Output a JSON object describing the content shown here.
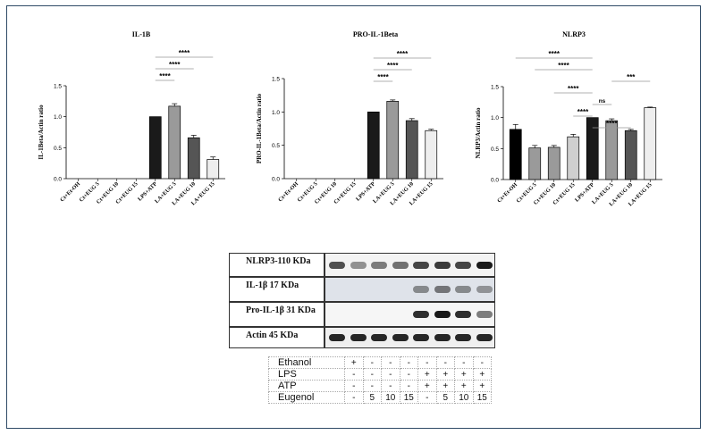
{
  "chart_data": [
    {
      "type": "bar",
      "title": "IL-1B",
      "ylabel": "IL-1Beta/Actin ratio",
      "xlabel": "",
      "ylim": [
        0,
        1.5
      ],
      "yticks": [
        "0.0",
        "0.5",
        "1.0",
        "1.5"
      ],
      "categories": [
        "Ct+Et-OH",
        "Ct+EUG 5",
        "Ct+EUG 10",
        "Ct+EUG 15",
        "LPS+ATP",
        "LA+EUG 5",
        "LA+EUG 10",
        "LA+EUG 15"
      ],
      "values": [
        0,
        0,
        0,
        0,
        1.0,
        1.17,
        0.66,
        0.31
      ],
      "errors": [
        0,
        0,
        0,
        0,
        0,
        0.04,
        0.04,
        0.04
      ],
      "bar_colors": [
        "#000000",
        "#9a9a9a",
        "#9a9a9a",
        "#cfcfcf",
        "#1a1a1a",
        "#9a9a9a",
        "#555555",
        "#eeeeee"
      ],
      "significance": [
        {
          "from": 4,
          "to": 7,
          "label": "****"
        },
        {
          "from": 4,
          "to": 6,
          "label": "****"
        },
        {
          "from": 4,
          "to": 5,
          "label": "****"
        }
      ]
    },
    {
      "type": "bar",
      "title": "PRO-IL-1Beta",
      "ylabel": "PRO-IL-1Beta/Actin ratio",
      "xlabel": "",
      "ylim": [
        0,
        1.5
      ],
      "yticks": [
        "0.0",
        "0.5",
        "1.0",
        "1.5"
      ],
      "categories": [
        "Ct+Et-OH",
        "Ct+EUG 5",
        "Ct+EUG 10",
        "Ct+EUG 15",
        "LPS+ATP",
        "LA+EUG 5",
        "LA+EUG 10",
        "LA+EUG 15"
      ],
      "values": [
        0,
        0,
        0,
        0,
        1.0,
        1.16,
        0.87,
        0.72
      ],
      "errors": [
        0,
        0,
        0,
        0,
        0,
        0.02,
        0.03,
        0.02
      ],
      "bar_colors": [
        "#000000",
        "#9a9a9a",
        "#9a9a9a",
        "#cfcfcf",
        "#1a1a1a",
        "#9a9a9a",
        "#555555",
        "#eeeeee"
      ],
      "significance": [
        {
          "from": 4,
          "to": 7,
          "label": "****"
        },
        {
          "from": 4,
          "to": 6,
          "label": "****"
        },
        {
          "from": 4,
          "to": 5,
          "label": "****"
        }
      ]
    },
    {
      "type": "bar",
      "title": "NLRP3",
      "ylabel": "NLRP3/Actin ratio",
      "xlabel": "",
      "ylim": [
        0,
        1.5
      ],
      "yticks": [
        "0.0",
        "0.5",
        "1.0",
        "1.5"
      ],
      "categories": [
        "Ct+Et-OH",
        "Ct+EUG 5",
        "Ct+EUG 10",
        "Ct+EUG 15",
        "LPS+ATP",
        "LA+EUG 5",
        "LA+EUG 10",
        "LA+EUG 15"
      ],
      "values": [
        0.81,
        0.51,
        0.52,
        0.69,
        1.0,
        0.95,
        0.79,
        1.16
      ],
      "errors": [
        0.08,
        0.04,
        0.03,
        0.04,
        0,
        0.03,
        0.02,
        0.01
      ],
      "bar_colors": [
        "#000000",
        "#9a9a9a",
        "#9a9a9a",
        "#cfcfcf",
        "#1a1a1a",
        "#9a9a9a",
        "#555555",
        "#eeeeee"
      ],
      "significance": [
        {
          "from": 0,
          "to": 4,
          "label": "****"
        },
        {
          "from": 1,
          "to": 4,
          "label": "****"
        },
        {
          "from": 5,
          "to": 7,
          "label": "***"
        },
        {
          "from": 2,
          "to": 4,
          "label": "****"
        },
        {
          "from": 4,
          "to": 5,
          "label": "ns"
        },
        {
          "from": 3,
          "to": 4,
          "label": "****"
        },
        {
          "from": 4,
          "to": 6,
          "label": "****"
        }
      ]
    }
  ],
  "blot": {
    "rows": [
      {
        "label": "NLRP3-110 KDa",
        "intensity": [
          0.75,
          0.45,
          0.55,
          0.6,
          0.8,
          0.85,
          0.8,
          1.0
        ],
        "panel_color": "#f3f3f3"
      },
      {
        "label": "IL-1β 17 KDa",
        "intensity": [
          0,
          0,
          0,
          0,
          0.45,
          0.55,
          0.45,
          0.4
        ],
        "panel_color": "#dfe3ea"
      },
      {
        "label": "Pro-IL-1β 31 KDa",
        "intensity": [
          0,
          0,
          0,
          0,
          0.9,
          1.0,
          0.9,
          0.55
        ],
        "panel_color": "#f6f6f6"
      },
      {
        "label": "Actin 45 KDa",
        "intensity": [
          0.95,
          0.95,
          0.95,
          0.95,
          0.95,
          0.95,
          0.95,
          0.95
        ],
        "panel_color": "#efefef"
      }
    ]
  },
  "treatment_table": {
    "rows": [
      {
        "label": "Ethanol",
        "cells": [
          "+",
          "-",
          "-",
          "-",
          "-",
          "-",
          "-",
          "-"
        ]
      },
      {
        "label": "LPS",
        "cells": [
          "-",
          "-",
          "-",
          "-",
          "+",
          "+",
          "+",
          "+"
        ]
      },
      {
        "label": "ATP",
        "cells": [
          "-",
          "-",
          "-",
          "-",
          "+",
          "+",
          "+",
          "+"
        ]
      },
      {
        "label": "Eugenol",
        "cells": [
          "-",
          "5",
          "10",
          "15",
          "-",
          "5",
          "10",
          "15"
        ]
      }
    ]
  }
}
